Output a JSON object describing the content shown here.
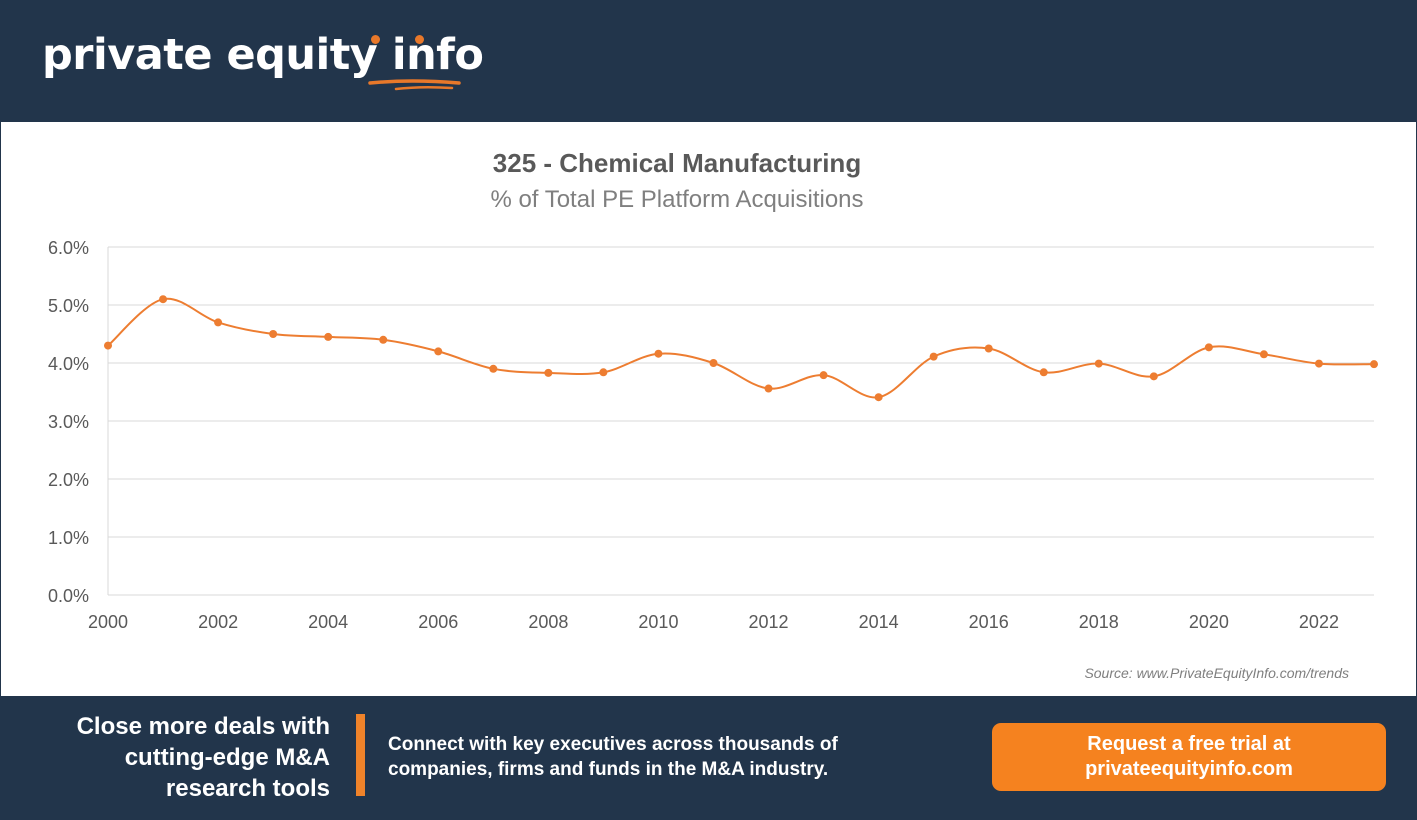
{
  "brand": {
    "logo_text": "private equity",
    "logo_accent": "info",
    "accent_color": "#e8782a",
    "background_color": "#22354b"
  },
  "chart_data": {
    "type": "line",
    "title": "325 - Chemical Manufacturing",
    "subtitle": "% of Total PE Platform Acquisitions",
    "xlabel": "",
    "ylabel": "",
    "x": [
      2000,
      2001,
      2002,
      2003,
      2004,
      2005,
      2006,
      2007,
      2008,
      2009,
      2010,
      2011,
      2012,
      2013,
      2014,
      2015,
      2016,
      2017,
      2018,
      2019,
      2020,
      2021,
      2022,
      2023
    ],
    "series": [
      {
        "name": "325 - Chemical Manufacturing",
        "color": "#ed7d31",
        "values": [
          4.3,
          5.1,
          4.7,
          4.5,
          4.45,
          4.4,
          4.2,
          3.9,
          3.83,
          3.84,
          4.16,
          4.0,
          3.56,
          3.79,
          3.41,
          4.11,
          4.25,
          3.84,
          3.99,
          3.77,
          4.27,
          4.15,
          3.99,
          3.98
        ]
      }
    ],
    "xlim": [
      2000,
      2023
    ],
    "ylim": [
      0,
      6
    ],
    "x_ticks": [
      "2000",
      "2002",
      "2004",
      "2006",
      "2008",
      "2010",
      "2012",
      "2014",
      "2016",
      "2018",
      "2020",
      "2022"
    ],
    "y_ticks": [
      "0.0%",
      "1.0%",
      "2.0%",
      "3.0%",
      "4.0%",
      "5.0%",
      "6.0%"
    ],
    "grid": true,
    "legend": "none"
  },
  "source": "Source: www.PrivateEquityInfo.com/trends",
  "footer": {
    "headline_lines": [
      "Close more deals with",
      "cutting-edge M&A",
      "research tools"
    ],
    "description_lines": [
      "Connect with key executives across thousands of",
      "companies, firms and funds in the M&A industry."
    ],
    "cta_lines": [
      "Request a free trial at",
      "privateequityinfo.com"
    ]
  }
}
